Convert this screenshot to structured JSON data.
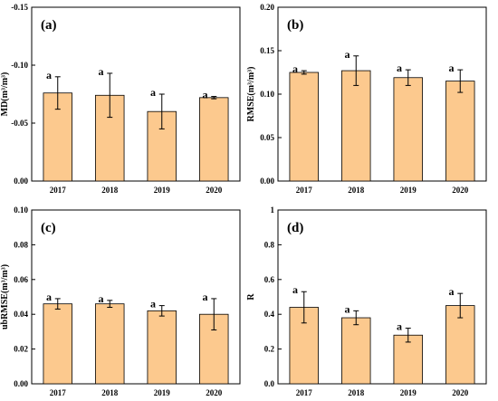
{
  "chart_data": [
    {
      "type": "bar",
      "panel_label": "(a)",
      "ylabel": "MD(m³/m³)",
      "categories": [
        "2017",
        "2018",
        "2019",
        "2020"
      ],
      "values": [
        -0.076,
        -0.074,
        -0.06,
        -0.072
      ],
      "errors": [
        0.014,
        0.019,
        0.015,
        0.001
      ],
      "significance": [
        "a",
        "a",
        "a",
        "a"
      ],
      "ylim": [
        0.0,
        -0.15
      ],
      "yticks": [
        0.0,
        -0.05,
        -0.1,
        -0.15
      ],
      "ytick_labels": [
        "0.00",
        "-0.05",
        "-0.10",
        "-0.15"
      ],
      "color": "#fcc98e"
    },
    {
      "type": "bar",
      "panel_label": "(b)",
      "ylabel": "RMSE(m³/m³)",
      "categories": [
        "2017",
        "2018",
        "2019",
        "2020"
      ],
      "values": [
        0.125,
        0.127,
        0.119,
        0.115
      ],
      "errors": [
        0.002,
        0.017,
        0.009,
        0.013
      ],
      "significance": [
        "a",
        "a",
        "a",
        "a"
      ],
      "ylim": [
        0.0,
        0.2
      ],
      "yticks": [
        0.0,
        0.05,
        0.1,
        0.15,
        0.2
      ],
      "ytick_labels": [
        "0.00",
        "0.05",
        "0.10",
        "0.15",
        "0.20"
      ],
      "color": "#fcc98e"
    },
    {
      "type": "bar",
      "panel_label": "(c)",
      "ylabel": "ubRMSE(m³/m³)",
      "categories": [
        "2017",
        "2018",
        "2019",
        "2020"
      ],
      "values": [
        0.046,
        0.046,
        0.042,
        0.04
      ],
      "errors": [
        0.003,
        0.002,
        0.003,
        0.009
      ],
      "significance": [
        "a",
        "a",
        "a",
        "a"
      ],
      "ylim": [
        0.0,
        0.1
      ],
      "yticks": [
        0.0,
        0.02,
        0.04,
        0.06,
        0.08,
        0.1
      ],
      "ytick_labels": [
        "0.00",
        "0.02",
        "0.04",
        "0.06",
        "0.08",
        "0.10"
      ],
      "color": "#fcc98e"
    },
    {
      "type": "bar",
      "panel_label": "(d)",
      "ylabel": "R",
      "categories": [
        "2017",
        "2018",
        "2019",
        "2020"
      ],
      "values": [
        0.44,
        0.38,
        0.28,
        0.45
      ],
      "errors": [
        0.09,
        0.04,
        0.04,
        0.07
      ],
      "significance": [
        "a",
        "a",
        "a",
        "a"
      ],
      "ylim": [
        0.0,
        1.0
      ],
      "yticks": [
        0.0,
        0.2,
        0.4,
        0.6,
        0.8,
        1.0
      ],
      "ytick_labels": [
        "0.0",
        "0.2",
        "0.4",
        "0.6",
        "0.8",
        "1"
      ],
      "color": "#fcc98e"
    }
  ]
}
